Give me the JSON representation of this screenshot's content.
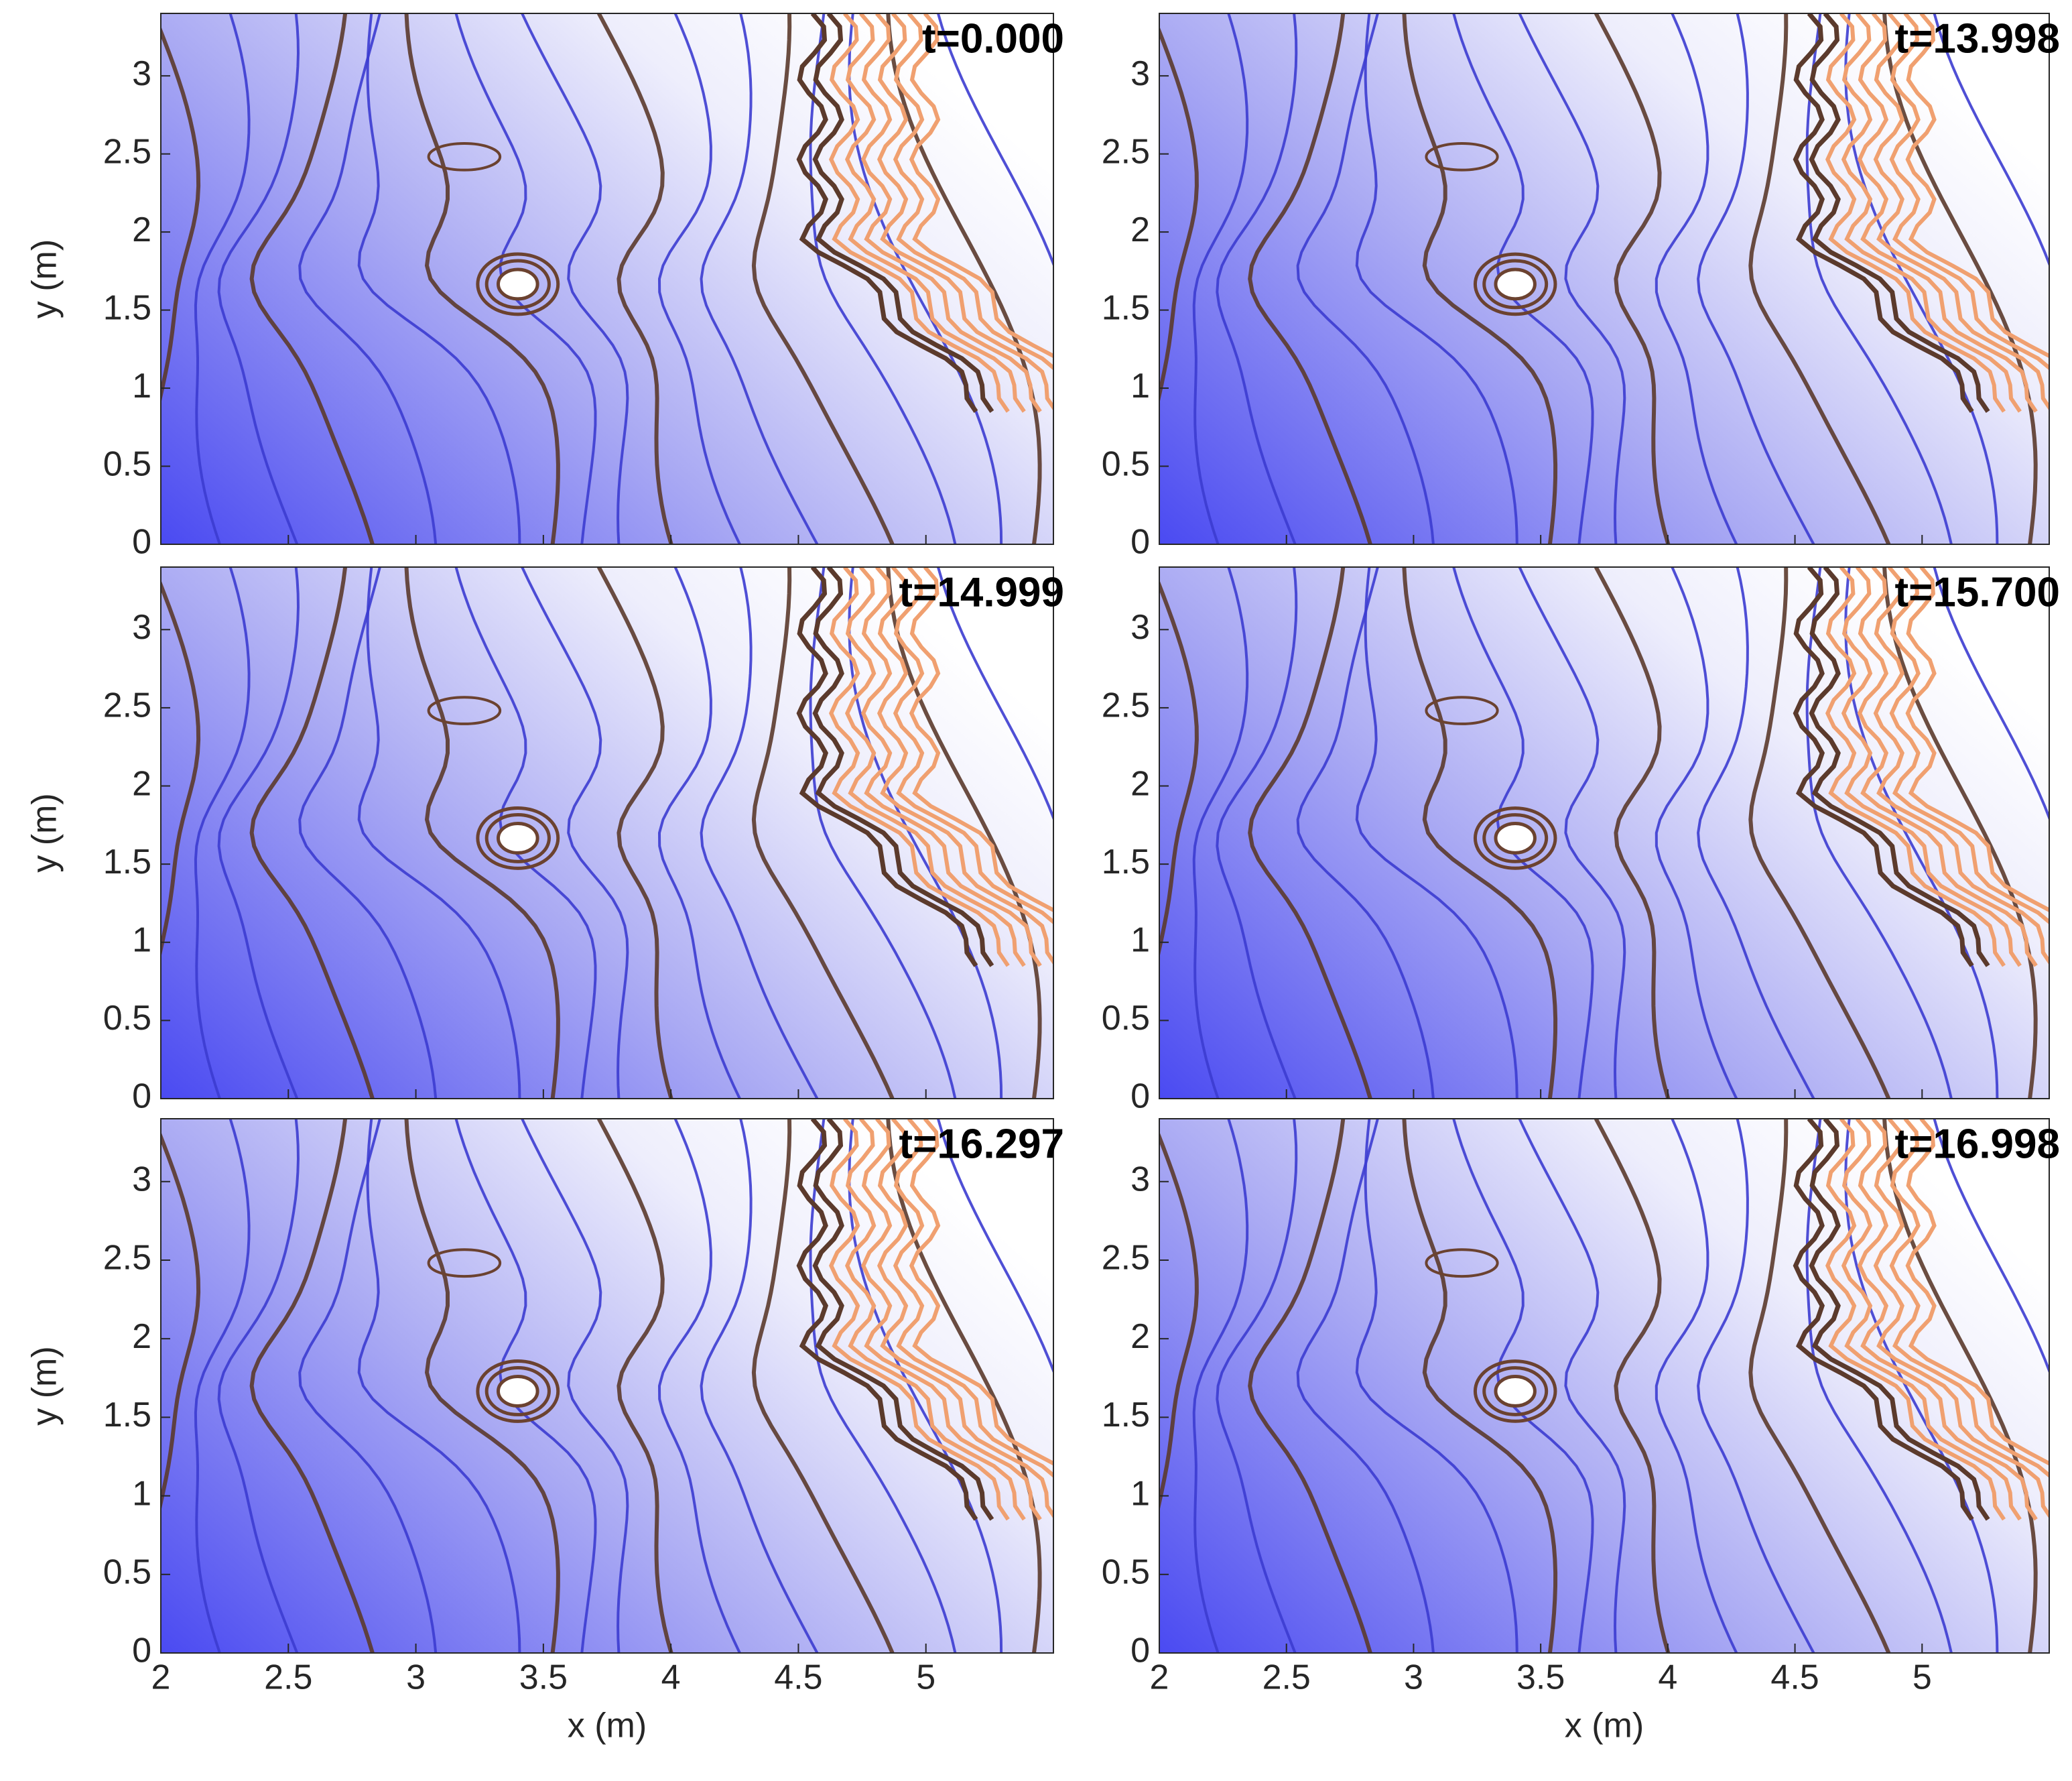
{
  "chart_data": [
    {
      "type": "contour",
      "title": "t=0.000",
      "ylabel": "y (m)",
      "xlim": [
        2,
        5.5
      ],
      "ylim": [
        0,
        3.4
      ],
      "xticks": [
        2,
        2.5,
        3,
        3.5,
        4,
        4.5,
        5
      ],
      "yticks": [
        0,
        0.5,
        1,
        1.5,
        2,
        2.5,
        3
      ]
    },
    {
      "type": "contour",
      "title": "t=13.998",
      "xlim": [
        2,
        5.5
      ],
      "ylim": [
        0,
        3.4
      ],
      "xticks": [
        2,
        2.5,
        3,
        3.5,
        4,
        4.5,
        5
      ],
      "yticks": [
        0,
        0.5,
        1,
        1.5,
        2,
        2.5,
        3
      ]
    },
    {
      "type": "contour",
      "title": "t=14.999",
      "ylabel": "y (m)",
      "xlim": [
        2,
        5.5
      ],
      "ylim": [
        0,
        3.4
      ],
      "xticks": [
        2,
        2.5,
        3,
        3.5,
        4,
        4.5,
        5
      ],
      "yticks": [
        0,
        0.5,
        1,
        1.5,
        2,
        2.5,
        3
      ]
    },
    {
      "type": "contour",
      "title": "t=15.700",
      "xlim": [
        2,
        5.5
      ],
      "ylim": [
        0,
        3.4
      ],
      "xticks": [
        2,
        2.5,
        3,
        3.5,
        4,
        4.5,
        5
      ],
      "yticks": [
        0,
        0.5,
        1,
        1.5,
        2,
        2.5,
        3
      ]
    },
    {
      "type": "contour",
      "title": "t=16.297",
      "xlabel": "x (m)",
      "ylabel": "y (m)",
      "xlim": [
        2,
        5.5
      ],
      "ylim": [
        0,
        3.4
      ],
      "xticks": [
        2,
        2.5,
        3,
        3.5,
        4,
        4.5,
        5
      ],
      "yticks": [
        0,
        0.5,
        1,
        1.5,
        2,
        2.5,
        3
      ]
    },
    {
      "type": "contour",
      "title": "t=16.998",
      "xlabel": "x (m)",
      "xlim": [
        2,
        5.5
      ],
      "ylim": [
        0,
        3.4
      ],
      "xticks": [
        2,
        2.5,
        3,
        3.5,
        4,
        4.5,
        5
      ],
      "yticks": [
        0,
        0.5,
        1,
        1.5,
        2,
        2.5,
        3
      ]
    }
  ]
}
